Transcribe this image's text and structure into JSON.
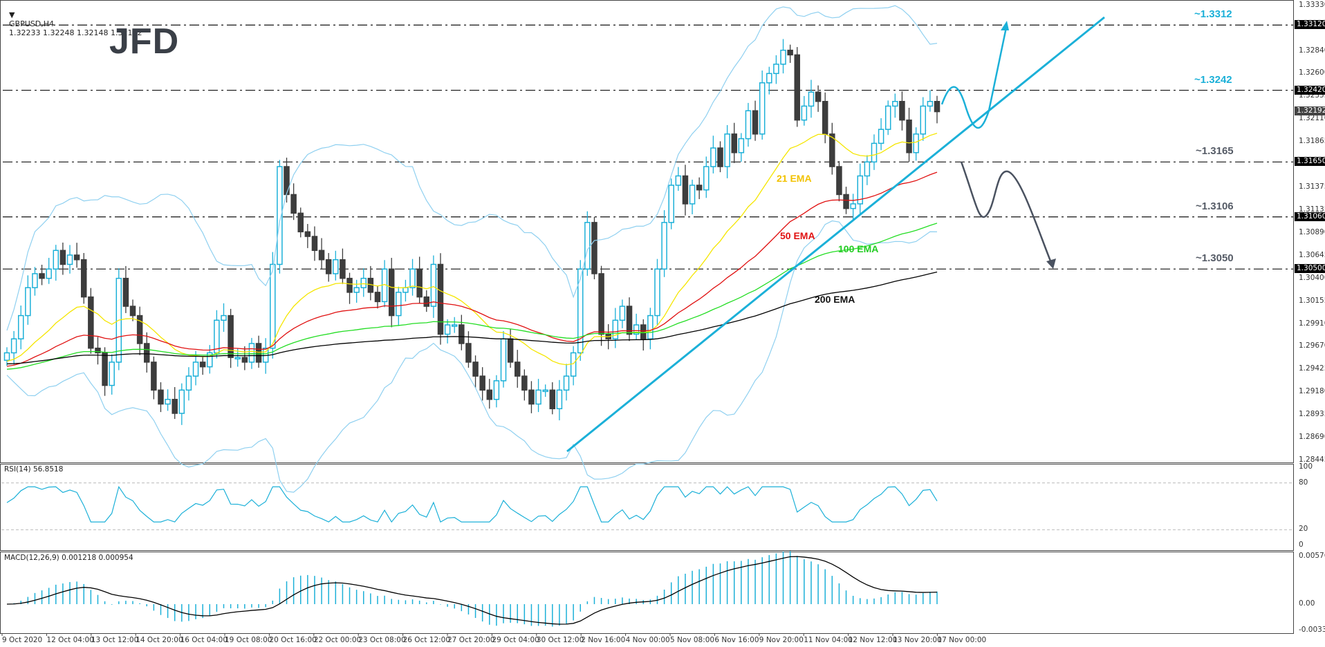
{
  "header": {
    "symbol": "GBPUSD,H4",
    "ohlc": "1.32233 1.32248 1.32148 1.32192",
    "logo": "JFD"
  },
  "price_axis": {
    "ticks": [
      "1.33330",
      "1.32840",
      "1.32600",
      "1.32355",
      "1.32110",
      "1.31865",
      "1.31375",
      "1.31135",
      "1.30890",
      "1.30645",
      "1.30400",
      "1.30155",
      "1.29910",
      "1.29670",
      "1.29425",
      "1.29180",
      "1.28935",
      "1.28690",
      "1.28445"
    ],
    "tags": [
      "1.33120",
      "1.32420",
      "1.31650",
      "1.31060",
      "1.30500"
    ],
    "current": "1.32192"
  },
  "levels": [
    {
      "label": "~1.3312",
      "price": 1.3312,
      "color": "#1bb0d8"
    },
    {
      "label": "~1.3242",
      "price": 1.3242,
      "color": "#1bb0d8"
    },
    {
      "label": "~1.3165",
      "price": 1.3165,
      "color": "#555b66"
    },
    {
      "label": "~1.3106",
      "price": 1.3106,
      "color": "#555b66"
    },
    {
      "label": "~1.3050",
      "price": 1.305,
      "color": "#555b66"
    }
  ],
  "ema_labels": [
    {
      "label": "21 EMA",
      "color": "#f2c200"
    },
    {
      "label": "50 EMA",
      "color": "#e01010"
    },
    {
      "label": "100 EMA",
      "color": "#22cc22"
    },
    {
      "label": "200 EMA",
      "color": "#111111"
    }
  ],
  "rsi": {
    "title": "RSI(14) 56.8518",
    "ticks": [
      "100",
      "80",
      "20",
      "0"
    ]
  },
  "macd": {
    "title": "MACD(12,26,9) 0.001218 0.000954",
    "ticks": [
      "0.00576",
      "0.00",
      "-0.003343"
    ]
  },
  "time_axis": [
    "9 Oct 2020",
    "12 Oct 04:00",
    "13 Oct 12:00",
    "14 Oct 20:00",
    "16 Oct 04:00",
    "19 Oct 08:00",
    "20 Oct 16:00",
    "22 Oct 00:00",
    "23 Oct 08:00",
    "26 Oct 12:00",
    "27 Oct 20:00",
    "29 Oct 04:00",
    "30 Oct 12:00",
    "2 Nov 16:00",
    "4 Nov 00:00",
    "5 Nov 08:00",
    "6 Nov 16:00",
    "9 Nov 20:00",
    "11 Nov 04:00",
    "12 Nov 12:00",
    "13 Nov 20:00",
    "17 Nov 00:00"
  ],
  "colors": {
    "bull": "#1bb0d8",
    "bear": "#3d3d3d",
    "band": "#8fd0f0",
    "ema21": "#f5e600",
    "ema50": "#e01010",
    "ema100": "#22dd22",
    "ema200": "#000000",
    "trend": "#1bb0d8",
    "rsi": "#1bb0d8"
  },
  "chart_data": {
    "type": "candlestick",
    "title": "GBPUSD, H4",
    "ylim": [
      1.28445,
      1.3333
    ],
    "closes": [
      1.296,
      1.2975,
      1.3,
      1.303,
      1.3045,
      1.304,
      1.305,
      1.307,
      1.3055,
      1.3065,
      1.306,
      1.302,
      1.2965,
      1.296,
      1.2925,
      1.295,
      1.304,
      1.301,
      1.3,
      1.297,
      1.295,
      1.292,
      1.2905,
      1.291,
      1.2895,
      1.292,
      1.2935,
      1.295,
      1.2945,
      1.296,
      1.2995,
      1.3,
      1.2955,
      1.2955,
      1.295,
      1.297,
      1.295,
      1.2965,
      1.3055,
      1.316,
      1.313,
      1.311,
      1.309,
      1.3085,
      1.307,
      1.306,
      1.3045,
      1.306,
      1.304,
      1.3025,
      1.303,
      1.304,
      1.3025,
      1.3015,
      1.305,
      1.3,
      1.3025,
      1.303,
      1.305,
      1.302,
      1.301,
      1.3055,
      1.298,
      1.299,
      1.299,
      1.297,
      1.295,
      1.2935,
      1.292,
      1.291,
      1.293,
      1.2975,
      1.295,
      1.2935,
      1.292,
      1.2905,
      1.292,
      1.292,
      1.29,
      1.292,
      1.2935,
      1.296,
      1.305,
      1.31,
      1.3045,
      1.298,
      1.2975,
      1.2995,
      1.301,
      1.298,
      1.299,
      1.2975,
      1.3,
      1.305,
      1.31,
      1.314,
      1.315,
      1.312,
      1.314,
      1.3135,
      1.316,
      1.318,
      1.316,
      1.3195,
      1.3175,
      1.319,
      1.322,
      1.3195,
      1.325,
      1.326,
      1.327,
      1.3285,
      1.328,
      1.321,
      1.3225,
      1.324,
      1.323,
      1.3195,
      1.316,
      1.313,
      1.3115,
      1.312,
      1.315,
      1.3165,
      1.3185,
      1.32,
      1.3225,
      1.323,
      1.321,
      1.3175,
      1.3195,
      1.3225,
      1.323,
      1.3219
    ],
    "levels": [
      1.3312,
      1.3242,
      1.3165,
      1.3106,
      1.305
    ],
    "indicators": [
      "Bollinger Bands",
      "EMA 21",
      "EMA 50",
      "EMA 100",
      "EMA 200",
      "RSI(14)",
      "MACD(12,26,9)"
    ],
    "rsi_last": 56.8518,
    "macd_last": [
      0.001218,
      0.000954
    ]
  }
}
